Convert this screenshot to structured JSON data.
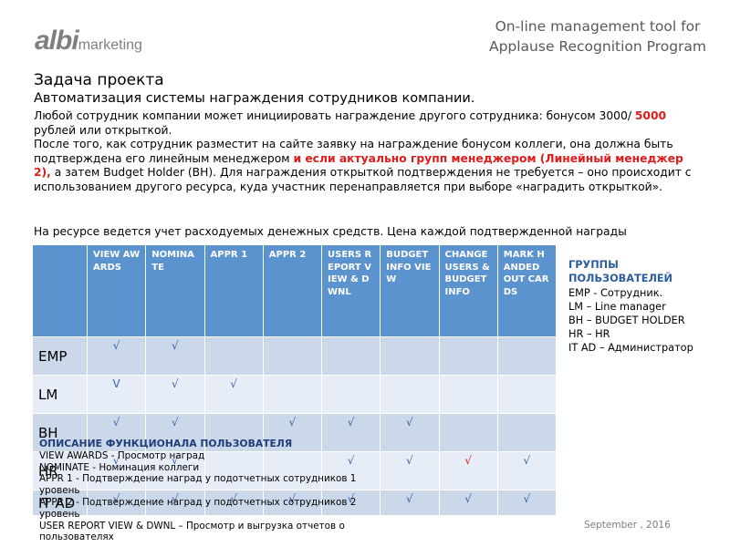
{
  "logo": {
    "brand": "albi",
    "suffix": "marketing"
  },
  "header": {
    "title": "On-line management tool for Applause Recognition Program"
  },
  "task": {
    "heading": "Задача проекта",
    "subheading": "Автоматизация системы награждения сотрудников компании.",
    "paragraphs": [
      [
        {
          "text": "Любой сотрудник компании может инициировать награждение другого сотрудника: бонусом 3000/ ",
          "highlight": false
        },
        {
          "text": "5000",
          "highlight": true
        },
        {
          "text": " рублей или открыткой.",
          "highlight": false
        }
      ],
      [
        {
          "text": "После того, как сотрудник разместит на сайте заявку на награждение бонусом коллеги, она должна быть подтверждена его линейным менеджером ",
          "highlight": false
        },
        {
          "text": "и если актуально групп менеджером (Линейный менеджер 2),",
          "highlight": true
        },
        {
          "text": " а затем Budget Holder (BH). Для награждения открыткой подтверждения не требуется – оно происходит с использованием другого ресурса, куда участник перенаправляется при выборе «наградить открыткой».",
          "highlight": false
        }
      ]
    ],
    "note": "На ресурсе ведется учет расходуемых денежных средств. Цена каждой подтвержденной награды"
  },
  "table": {
    "columns": [
      "VIEW AWARDS",
      "NOMINATE",
      "APPR 1",
      "APPR 2",
      "USERS REPORT VIEW & DWNL",
      "BUDGET INFO VIEW",
      "CHANGE USERS & BUDGET INFO",
      "MARK HANDED OUT CARDS"
    ],
    "rows": [
      {
        "label": "EMP",
        "cells": [
          "√",
          "√",
          null,
          null,
          null,
          null,
          null,
          null
        ]
      },
      {
        "label": "LM",
        "cells": [
          "V",
          "√",
          "√",
          null,
          null,
          null,
          null,
          null
        ]
      },
      {
        "label": "BH",
        "cells": [
          "√",
          "√",
          null,
          "√",
          "√",
          "√",
          null,
          null
        ]
      },
      {
        "label": "HR",
        "cells": [
          "√",
          "√",
          null,
          null,
          "√",
          "√",
          {
            "text": "√",
            "highlight": true
          },
          "√"
        ]
      },
      {
        "label": "IT AD",
        "cells": [
          "√",
          "√",
          "√",
          "√",
          "√",
          "√",
          "√",
          "√"
        ]
      }
    ]
  },
  "groups": {
    "title": "ГРУППЫ ПОЛЬЗОВАТЕЛЕЙ",
    "items": [
      "EMP - Сотрудник.",
      "LM – Line manager",
      "BH – BUDGET HOLDER",
      "HR – HR",
      "IT AD – Администратор"
    ]
  },
  "legend": {
    "title": "ОПИСАНИЕ ФУНКЦИОНАЛА ПОЛЬЗОВАТЕЛЯ",
    "items": [
      "VIEW AWARDS - Просмотр наград",
      "NOMINATE - Номинация коллеги",
      "APPR 1 - Подтверждение наград у подотчетных сотрудников 1 уровень",
      "APPR 2  - Подтверждение наград у подотчетных сотрудников 2 уровень",
      "USER REPORT VIEW & DWNL – Просмотр и выгрузка отчетов о пользователях"
    ]
  },
  "footer": {
    "date": "September , 2016"
  }
}
